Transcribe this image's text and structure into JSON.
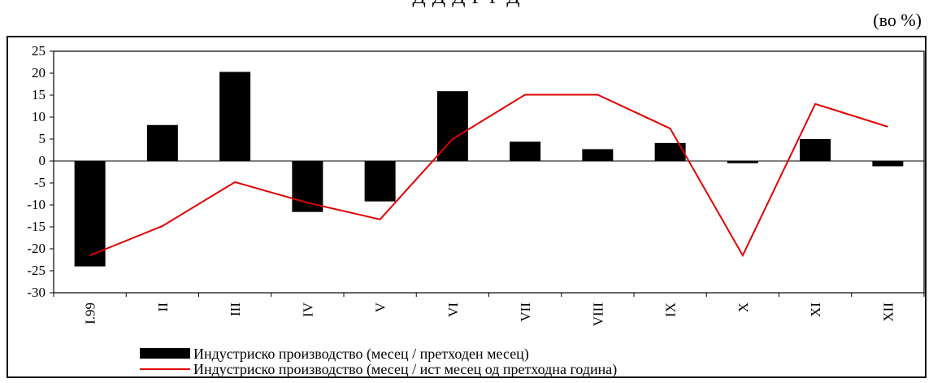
{
  "title": "Д                  Д                 Д        Р                     Р             Д",
  "unit_label": "(во %)",
  "colors": {
    "bar": "#000000",
    "line": "#e00000"
  },
  "chart_data": {
    "type": "bar",
    "categories": [
      "I.99",
      "II",
      "III",
      "IV",
      "V",
      "VI",
      "VII",
      "VIII",
      "IX",
      "X",
      "XI",
      "XII"
    ],
    "ylim": [
      -30,
      25
    ],
    "yticks": [
      25,
      20,
      15,
      10,
      5,
      0,
      -5,
      -10,
      -15,
      -20,
      -25,
      -30
    ],
    "ytick_labels": [
      "25",
      "20",
      "15",
      "10",
      "5",
      "0",
      "-5",
      "-10",
      "-15",
      "-20",
      "-25",
      "-30"
    ],
    "grid": false,
    "legend_position": "bottom",
    "series": [
      {
        "name": "Индустриско производство (месец / претходен месец)",
        "type": "bar",
        "values": [
          -24,
          8.2,
          20.3,
          -11.6,
          -9.2,
          15.9,
          4.4,
          2.7,
          4.1,
          -0.5,
          5.0,
          -1.2
        ]
      },
      {
        "name": "Индустриско производство (месец / ист месец од претходна година)",
        "type": "line",
        "values": [
          -21.5,
          -14.8,
          -4.8,
          -9.5,
          -13.3,
          5.0,
          15.1,
          15.1,
          7.4,
          -21.5,
          13.0,
          7.8
        ]
      }
    ]
  }
}
